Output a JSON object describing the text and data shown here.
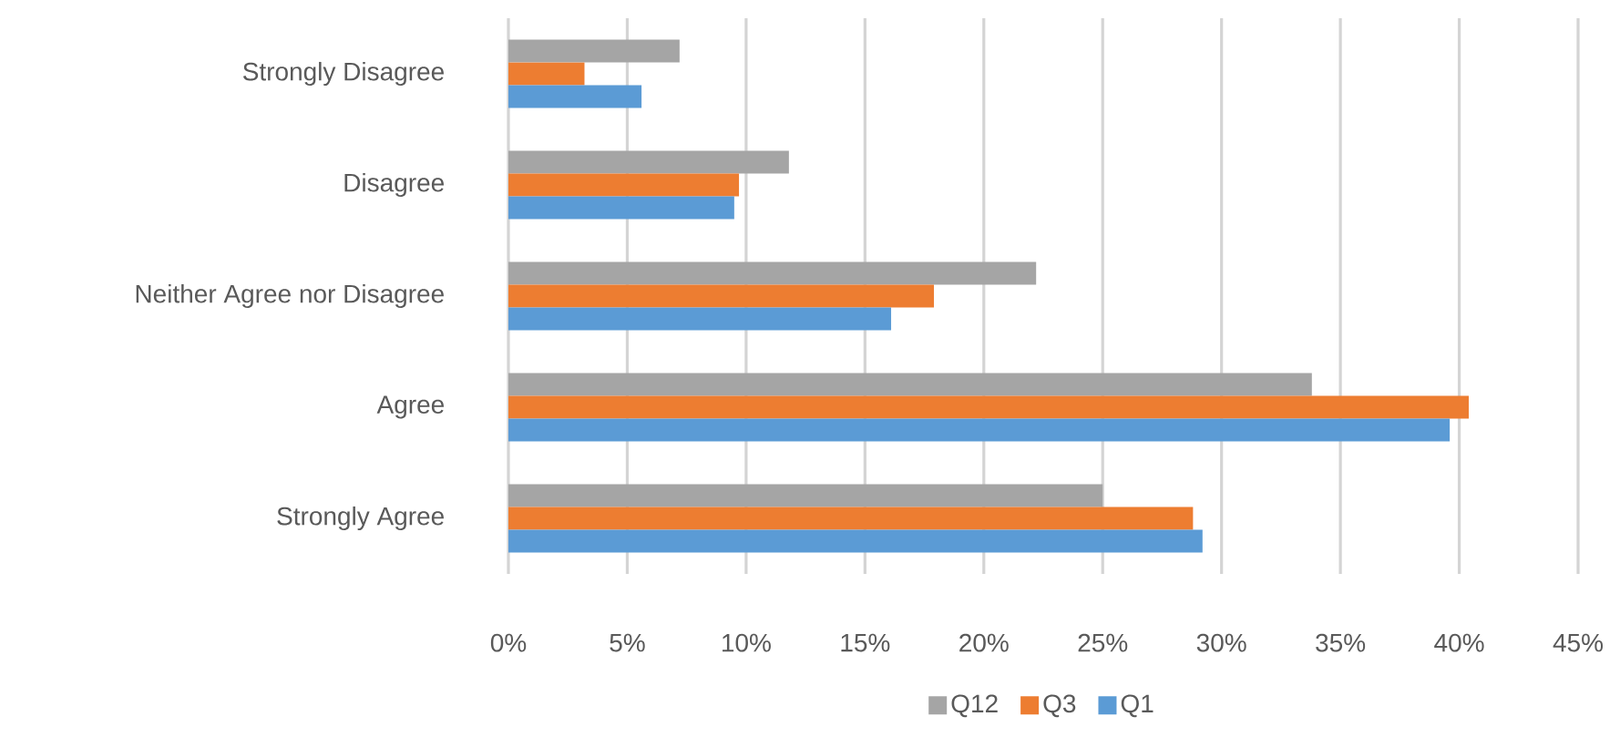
{
  "chart_data": {
    "type": "bar",
    "orientation": "horizontal",
    "categories": [
      "Strongly Disagree",
      "Disagree",
      "Neither Agree nor Disagree",
      "Agree",
      "Strongly Agree"
    ],
    "series": [
      {
        "name": "Q12",
        "color": "#a5a5a5",
        "values": [
          7.2,
          11.8,
          22.2,
          33.8,
          25.0
        ]
      },
      {
        "name": "Q3",
        "color": "#ed7d31",
        "values": [
          3.2,
          9.7,
          17.9,
          40.4,
          28.8
        ]
      },
      {
        "name": "Q1",
        "color": "#5b9bd5",
        "values": [
          5.6,
          9.5,
          16.1,
          39.6,
          29.2
        ]
      }
    ],
    "xlim": [
      0,
      45
    ],
    "xticks": [
      {
        "value": 0,
        "label": "0%"
      },
      {
        "value": 5,
        "label": "5%"
      },
      {
        "value": 10,
        "label": "10%"
      },
      {
        "value": 15,
        "label": "15%"
      },
      {
        "value": 20,
        "label": "20%"
      },
      {
        "value": 25,
        "label": "25%"
      },
      {
        "value": 30,
        "label": "30%"
      },
      {
        "value": 35,
        "label": "35%"
      },
      {
        "value": 40,
        "label": "40%"
      },
      {
        "value": 45,
        "label": "45%"
      }
    ],
    "grid": "x",
    "legend": "bottom"
  }
}
